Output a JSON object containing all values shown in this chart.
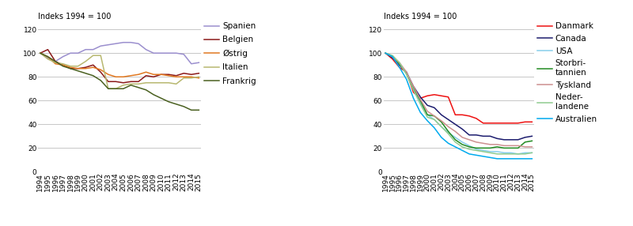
{
  "years": [
    1994,
    1995,
    1996,
    1997,
    1998,
    1999,
    2000,
    2001,
    2002,
    2003,
    2004,
    2005,
    2006,
    2007,
    2008,
    2009,
    2010,
    2011,
    2012,
    2013,
    2014,
    2015
  ],
  "chart1": {
    "ylabel": "Indeks 1994 = 100",
    "ylim": [
      0,
      120
    ],
    "yticks": [
      0,
      20,
      40,
      60,
      80,
      100,
      120
    ],
    "series": [
      {
        "label": "Spanien",
        "color": "#9B8FCE",
        "data": [
          100,
          96,
          93,
          97,
          100,
          100,
          103,
          103,
          106,
          107,
          108,
          109,
          109,
          108,
          103,
          100,
          100,
          100,
          100,
          99,
          91,
          92
        ]
      },
      {
        "label": "Belgien",
        "color": "#8B1A1A",
        "data": [
          100,
          103,
          93,
          90,
          87,
          87,
          88,
          90,
          84,
          76,
          76,
          75,
          76,
          76,
          81,
          80,
          82,
          82,
          81,
          83,
          82,
          83
        ]
      },
      {
        "label": "Østrig",
        "color": "#E07820",
        "data": [
          100,
          97,
          91,
          90,
          88,
          87,
          87,
          88,
          86,
          82,
          80,
          80,
          81,
          82,
          84,
          82,
          82,
          81,
          80,
          80,
          80,
          79
        ]
      },
      {
        "label": "Italien",
        "color": "#B8B870",
        "data": [
          100,
          95,
          92,
          91,
          89,
          89,
          93,
          98,
          98,
          70,
          70,
          73,
          74,
          74,
          75,
          75,
          75,
          75,
          74,
          79,
          79,
          80
        ]
      },
      {
        "label": "Frankrig",
        "color": "#4A6020",
        "data": [
          100,
          97,
          93,
          89,
          87,
          85,
          83,
          81,
          77,
          70,
          70,
          70,
          73,
          71,
          69,
          65,
          62,
          59,
          57,
          55,
          52,
          52
        ]
      }
    ]
  },
  "chart2": {
    "ylabel": "Indeks 1994 = 100",
    "ylim": [
      0,
      120
    ],
    "yticks": [
      0,
      20,
      40,
      60,
      80,
      100,
      120
    ],
    "series": [
      {
        "label": "Danmark",
        "color": "#EE1111",
        "data": [
          100,
          95,
          88,
          84,
          67,
          62,
          64,
          65,
          64,
          63,
          48,
          48,
          47,
          45,
          41,
          41,
          41,
          41,
          41,
          41,
          42,
          42
        ]
      },
      {
        "label": "Canada",
        "color": "#1C1C6E",
        "data": [
          100,
          96,
          90,
          84,
          72,
          63,
          56,
          54,
          48,
          44,
          40,
          36,
          31,
          31,
          30,
          30,
          28,
          27,
          27,
          27,
          29,
          30
        ]
      },
      {
        "label": "USA",
        "color": "#87CEEB",
        "data": [
          100,
          97,
          91,
          83,
          70,
          58,
          48,
          44,
          38,
          33,
          29,
          25,
          22,
          19,
          18,
          17,
          17,
          16,
          16,
          15,
          16,
          16
        ]
      },
      {
        "label": "Storbri-\ntannien",
        "color": "#228B22",
        "data": [
          100,
          97,
          91,
          83,
          71,
          60,
          48,
          47,
          42,
          34,
          27,
          23,
          21,
          20,
          20,
          20,
          21,
          20,
          20,
          20,
          25,
          26
        ]
      },
      {
        "label": "Tyskland",
        "color": "#CD9090",
        "data": [
          100,
          97,
          92,
          84,
          72,
          61,
          51,
          47,
          43,
          38,
          34,
          29,
          27,
          25,
          24,
          23,
          23,
          22,
          22,
          22,
          21,
          21
        ]
      },
      {
        "label": "Neder-\nlandene",
        "color": "#90CC90",
        "data": [
          100,
          98,
          92,
          82,
          69,
          57,
          46,
          44,
          38,
          32,
          25,
          21,
          19,
          18,
          17,
          16,
          15,
          15,
          15,
          15,
          15,
          16
        ]
      },
      {
        "label": "Australien",
        "color": "#00AAEE",
        "data": [
          100,
          97,
          88,
          78,
          62,
          50,
          43,
          37,
          29,
          24,
          21,
          18,
          15,
          14,
          13,
          12,
          11,
          11,
          11,
          11,
          11,
          11
        ]
      }
    ]
  },
  "bg_color": "#FFFFFF",
  "grid_color": "#BEBEBE",
  "tick_fontsize": 6.5,
  "label_fontsize": 7,
  "legend_fontsize": 7.5
}
